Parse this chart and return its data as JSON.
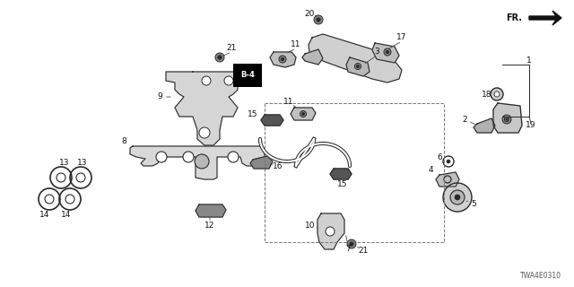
{
  "background_color": "#ffffff",
  "diagram_code": "TWA4E0310",
  "line_color": "#2a2a2a",
  "fill_light": "#e0e0e0",
  "fill_mid": "#c8c8c8",
  "figsize": [
    6.4,
    3.2
  ],
  "dpi": 100
}
